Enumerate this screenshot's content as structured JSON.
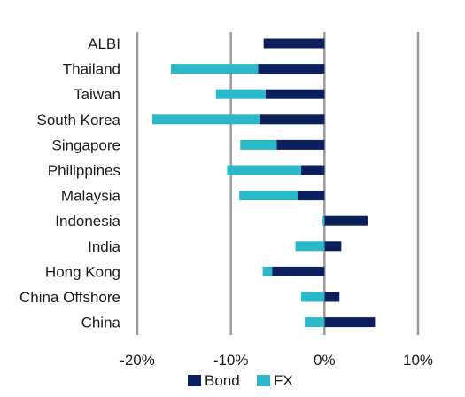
{
  "chart_data": {
    "type": "bar",
    "orientation": "horizontal",
    "stacked": true,
    "categories": [
      "ALBI",
      "Thailand",
      "Taiwan",
      "South Korea",
      "Singapore",
      "Philippines",
      "Malaysia",
      "Indonesia",
      "India",
      "Hong Kong",
      "China Offshore",
      "China"
    ],
    "series": [
      {
        "name": "Bond",
        "color": "#0b1f5c",
        "values": [
          -6.5,
          -7.1,
          -6.3,
          -6.9,
          -5.1,
          -2.5,
          -2.9,
          4.6,
          1.8,
          -5.6,
          1.6,
          5.4
        ]
      },
      {
        "name": "FX",
        "color": "#2bb8c9",
        "values": [
          0.0,
          -9.3,
          -5.3,
          -11.5,
          -3.9,
          -7.9,
          -6.2,
          -0.2,
          -3.1,
          -1.0,
          -2.5,
          -2.1
        ]
      }
    ],
    "xlim": [
      -20,
      10
    ],
    "xticks": [
      "-20%",
      "-10%",
      "0%",
      "10%"
    ],
    "grid": "vertical",
    "legend_position": "bottom"
  }
}
